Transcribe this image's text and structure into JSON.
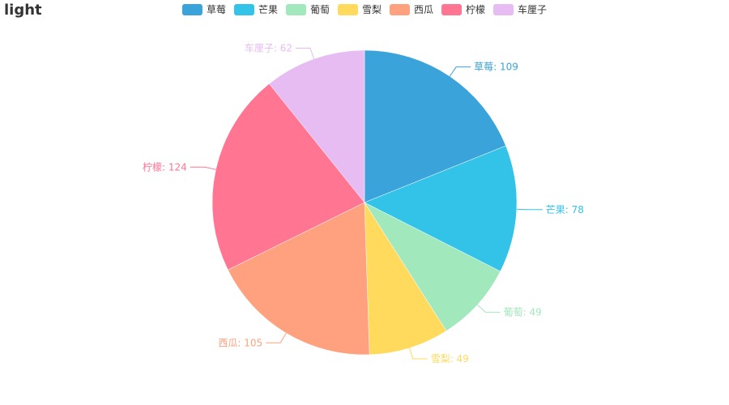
{
  "title": "light",
  "chart_data": {
    "type": "pie",
    "title": "light",
    "legend_placement": "top-center",
    "label_format": "{name}: {value}",
    "categories": [
      "草莓",
      "芒果",
      "葡萄",
      "雪梨",
      "西瓜",
      "柠檬",
      "车厘子"
    ],
    "values": [
      109,
      78,
      49,
      49,
      105,
      124,
      62
    ],
    "colors": [
      "#3aa3d9",
      "#33c3e8",
      "#a2e8bd",
      "#ffda5c",
      "#ffa07e",
      "#ff7592",
      "#e6bcf3"
    ],
    "start_angle": "12 o'clock",
    "direction": "clockwise"
  }
}
